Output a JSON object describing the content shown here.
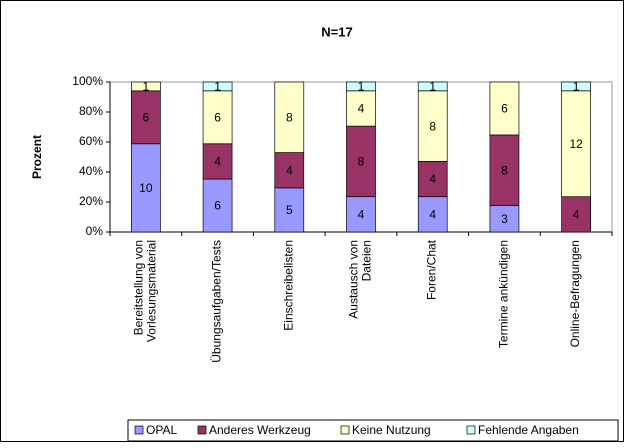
{
  "chart_data": {
    "type": "bar",
    "stacked": "percent",
    "title": "N=17",
    "y_label": "Prozent",
    "categories": [
      "Bereitstellung von\nVorlesungsmaterial",
      "Übungsaufgaben/Tests",
      "Einschreibelisten",
      "Austausch von\nDateien",
      "Foren/Chat",
      "Termine ankündigen",
      "Online-Befragungen"
    ],
    "series": [
      {
        "name": "OPAL",
        "color": "#9999ff",
        "values": [
          10,
          6,
          5,
          4,
          4,
          3,
          0
        ]
      },
      {
        "name": "Anderes Werkzeug",
        "color": "#993366",
        "values": [
          6,
          4,
          4,
          8,
          4,
          8,
          4
        ]
      },
      {
        "name": "Keine Nutzung",
        "color": "#ffffcc",
        "values": [
          1,
          6,
          8,
          4,
          8,
          6,
          12
        ]
      },
      {
        "name": "Fehlende Angaben",
        "color": "#ccffff",
        "values": [
          0,
          1,
          0,
          1,
          1,
          0,
          1
        ]
      }
    ],
    "ylim": [
      0,
      100
    ],
    "yticks": [
      {
        "value": 0,
        "label": "0%"
      },
      {
        "value": 20,
        "label": "20%"
      },
      {
        "value": 40,
        "label": "40%"
      },
      {
        "value": 60,
        "label": "60%"
      },
      {
        "value": 80,
        "label": "80%"
      },
      {
        "value": 100,
        "label": "100%"
      }
    ],
    "legend": "bottom"
  }
}
